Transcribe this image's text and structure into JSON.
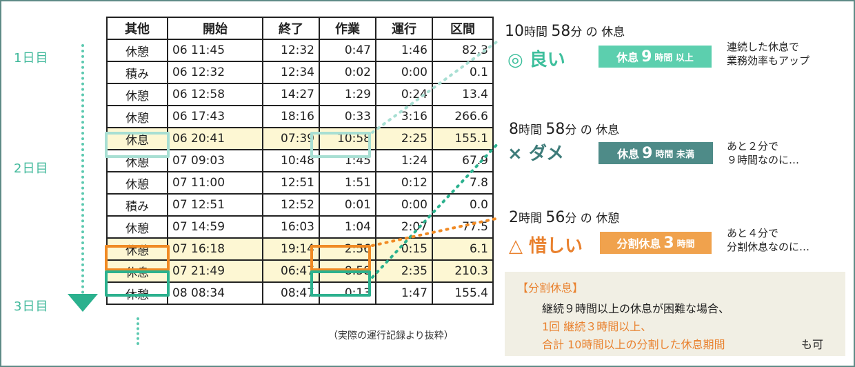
{
  "days": [
    "1日目",
    "2日目",
    "3日目"
  ],
  "table": {
    "headers": [
      "其他",
      "開始",
      "終了",
      "作業",
      "運行",
      "区間"
    ],
    "rows": [
      [
        "休憩",
        "06 11:45",
        "12:32",
        "0:47",
        "1:46",
        "82.3"
      ],
      [
        "積み",
        "06 12:32",
        "12:34",
        "0:02",
        "0:00",
        "0.1"
      ],
      [
        "休憩",
        "06 12:58",
        "14:27",
        "1:29",
        "0:24",
        "13.4"
      ],
      [
        "休憩",
        "06 17:43",
        "18:16",
        "0:33",
        "3:16",
        "266.6"
      ],
      [
        "休息",
        "06 20:41",
        "07:39",
        "10:58",
        "2:25",
        "155.1"
      ],
      [
        "休憩",
        "07 09:03",
        "10:48",
        "1:45",
        "1:24",
        "67.9"
      ],
      [
        "休憩",
        "07 11:00",
        "12:51",
        "1:51",
        "0:12",
        "7.8"
      ],
      [
        "積み",
        "07 12:51",
        "12:52",
        "0:01",
        "0:00",
        "0.0"
      ],
      [
        "休憩",
        "07 14:59",
        "16:03",
        "1:04",
        "2:07",
        "77.5"
      ],
      [
        "休憩",
        "07 16:18",
        "19:14",
        "2:56",
        "0:15",
        "6.1"
      ],
      [
        "休息",
        "07 21:49",
        "06:47",
        "8:58",
        "2:35",
        "210.3"
      ],
      [
        "休憩",
        "08 08:34",
        "08:47",
        "0:13",
        "1:47",
        "155.4"
      ]
    ],
    "highlighted_rows": [
      4,
      9,
      10
    ]
  },
  "source_note": "（実際の運行記録より抜粋）",
  "cases": [
    {
      "heading_num1": "10",
      "heading_unit1": "時間",
      "heading_num2": "58",
      "heading_unit2": "分 の 休息",
      "verdict": "◎ 良い",
      "tag_pre": "休息",
      "tag_num": "9",
      "tag_post": "時間 以上",
      "note_line1": "連続した休息で",
      "note_line2": "業務効率もアップ",
      "color": "#3dbf9c",
      "tag_color": "#5ccfae"
    },
    {
      "heading_num1": "8",
      "heading_unit1": "時間",
      "heading_num2": "58",
      "heading_unit2": "分 の 休息",
      "verdict": "× ダメ",
      "tag_pre": "休息",
      "tag_num": "9",
      "tag_post": "時間 未満",
      "note_line1": "あと２分で",
      "note_line2": "９時間なのに…",
      "color": "#3e7c7a",
      "tag_color": "#4e8b88"
    },
    {
      "heading_num1": "2",
      "heading_unit1": "時間",
      "heading_num2": "56",
      "heading_unit2": "分 の 休憩",
      "verdict": "△ 惜しい",
      "tag_pre": "分割休息",
      "tag_num": "3",
      "tag_post": "時間",
      "note_line1": "あと４分で",
      "note_line2": "分割休息なのに…",
      "color": "#e9812e",
      "tag_color": "#f0a24d"
    }
  ],
  "panel": {
    "title": "【分割休息】",
    "line1": "継続９時間以上の休息が困難な場合、",
    "line2": "1回 継続３時間以上、",
    "line3": "合計 10時間以上の分割した休息期間",
    "line3_suffix": "も可"
  },
  "colors": {
    "teal_light": "#a8dfd3",
    "teal": "#3dbf9c",
    "orange": "#f08a24",
    "green": "#2bb18e"
  }
}
